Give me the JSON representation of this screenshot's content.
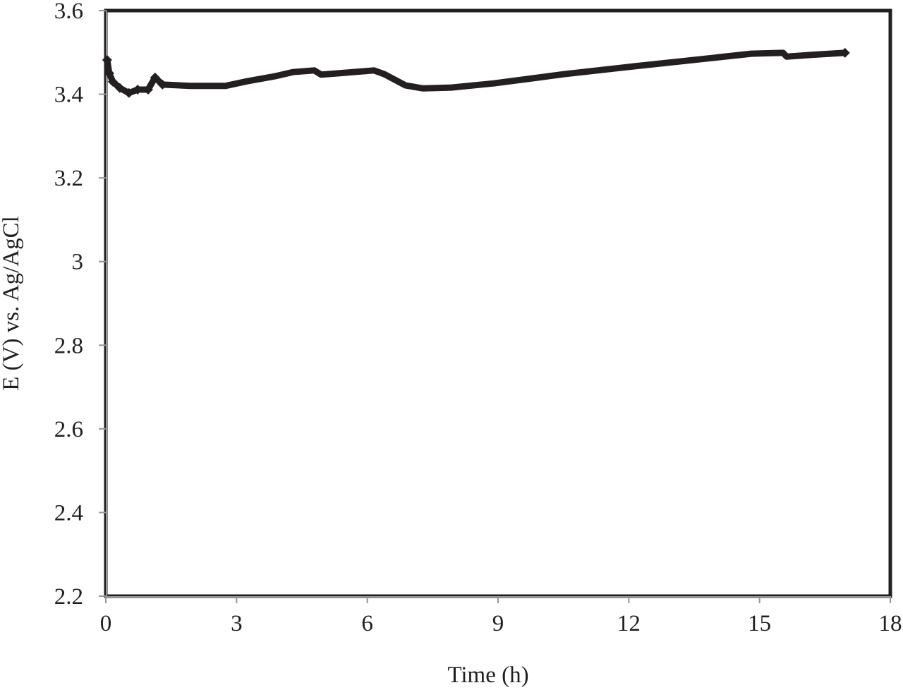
{
  "chart_data": {
    "type": "line",
    "title": "",
    "xlabel": "Time (h)",
    "ylabel": "E (V) vs. Ag/AgCl",
    "xlim": [
      0,
      18
    ],
    "ylim": [
      2.2,
      3.6
    ],
    "xticks": [
      0,
      3,
      6,
      9,
      12,
      15,
      18
    ],
    "yticks": [
      2.2,
      2.4,
      2.6,
      2.8,
      3.0,
      3.2,
      3.4,
      3.6
    ],
    "xtick_labels": [
      "0",
      "3",
      "6",
      "9",
      "12",
      "15",
      "18"
    ],
    "ytick_labels": [
      "2.2",
      "2.4",
      "2.6",
      "2.8",
      "3",
      "3.2",
      "3.4",
      "3.6"
    ],
    "grid": false,
    "legend": null,
    "series": [
      {
        "name": "E vs. Ag/AgCl",
        "color": "#231f20",
        "marker": "diamond",
        "x": [
          0.03,
          0.08,
          0.16,
          0.32,
          0.53,
          0.73,
          0.97,
          1.13,
          1.3,
          1.94,
          2.75,
          3.24,
          3.88,
          4.29,
          4.78,
          4.94,
          5.34,
          6.15,
          6.39,
          6.88,
          7.28,
          7.93,
          8.9,
          10.52,
          12.14,
          13.76,
          14.81,
          15.54,
          15.62,
          16.19,
          16.96
        ],
        "y": [
          3.482,
          3.45,
          3.43,
          3.415,
          3.403,
          3.411,
          3.411,
          3.44,
          3.423,
          3.42,
          3.42,
          3.431,
          3.443,
          3.453,
          3.457,
          3.447,
          3.45,
          3.457,
          3.448,
          3.421,
          3.414,
          3.416,
          3.426,
          3.448,
          3.467,
          3.485,
          3.497,
          3.499,
          3.49,
          3.494,
          3.499
        ]
      }
    ]
  },
  "colors": {
    "line": "#231f20",
    "frame": "#231f20",
    "tick": "#939598",
    "background": "#ffffff"
  }
}
